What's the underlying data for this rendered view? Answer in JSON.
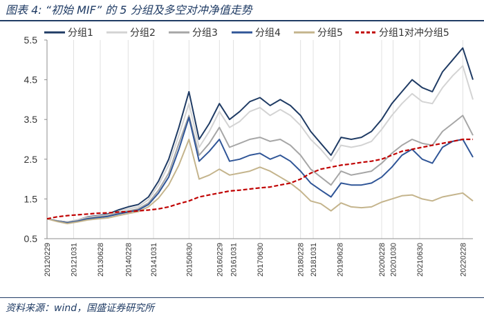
{
  "header": {
    "title": "图表 4:  “初始 MIF” 的 5 分组及多空对冲净值走势"
  },
  "footer": {
    "source": "资料来源：wind，国盛证券研究所"
  },
  "chart_data": {
    "type": "line",
    "title": "“初始 MIF” 的 5 分组及多空对冲净值走势",
    "xlabel": "",
    "ylabel": "",
    "ylim": [
      0.5,
      5.5
    ],
    "yticks": [
      "0.5",
      "1.5",
      "2.5",
      "3.5",
      "4.5",
      "5.5"
    ],
    "xticks": [
      "20120229",
      "20121031",
      "20130628",
      "20140228",
      "20141031",
      "20150630",
      "20160229",
      "20161031",
      "20170630",
      "20180228",
      "20181031",
      "20190628",
      "20200228",
      "20201030",
      "20210630",
      "20220228"
    ],
    "grid": "vertical",
    "legend_position": "top",
    "x": [
      "20120229",
      "20120531",
      "20120831",
      "20121130",
      "20130228",
      "20130531",
      "20130830",
      "20131129",
      "20140228",
      "20140530",
      "20140829",
      "20141128",
      "20150227",
      "20150529",
      "20150630",
      "20150831",
      "20151130",
      "20160229",
      "20160531",
      "20160831",
      "20161130",
      "20170228",
      "20170531",
      "20170831",
      "20171130",
      "20180228",
      "20180531",
      "20180831",
      "20181130",
      "20190228",
      "20190531",
      "20190830",
      "20191129",
      "20200228",
      "20200529",
      "20200831",
      "20201130",
      "20210226",
      "20210531",
      "20210831",
      "20211130",
      "20220228",
      "20220531"
    ],
    "series": [
      {
        "name": "分组1",
        "color": "#1f3b64",
        "dash": "solid",
        "values": [
          1.0,
          0.95,
          0.92,
          0.97,
          1.05,
          1.08,
          1.12,
          1.22,
          1.3,
          1.36,
          1.55,
          1.95,
          2.5,
          3.3,
          4.2,
          3.0,
          3.4,
          3.9,
          3.5,
          3.7,
          3.95,
          4.05,
          3.85,
          4.0,
          3.85,
          3.6,
          3.2,
          2.9,
          2.6,
          3.05,
          3.0,
          3.05,
          3.2,
          3.5,
          3.9,
          4.2,
          4.5,
          4.3,
          4.2,
          4.7,
          5.0,
          5.3,
          4.5
        ]
      },
      {
        "name": "分组2",
        "color": "#d3d3d3",
        "dash": "solid",
        "values": [
          1.0,
          0.95,
          0.92,
          0.97,
          1.04,
          1.07,
          1.1,
          1.18,
          1.25,
          1.3,
          1.48,
          1.85,
          2.35,
          3.1,
          3.9,
          2.8,
          3.2,
          3.7,
          3.3,
          3.45,
          3.7,
          3.8,
          3.6,
          3.75,
          3.6,
          3.35,
          3.0,
          2.75,
          2.45,
          2.85,
          2.8,
          2.85,
          2.95,
          3.25,
          3.6,
          3.9,
          4.15,
          3.95,
          3.9,
          4.3,
          4.6,
          4.85,
          4.0
        ]
      },
      {
        "name": "分组3",
        "color": "#a6a6a6",
        "dash": "solid",
        "values": [
          1.0,
          0.95,
          0.91,
          0.95,
          1.02,
          1.05,
          1.08,
          1.15,
          1.2,
          1.25,
          1.4,
          1.72,
          2.15,
          2.9,
          3.6,
          2.6,
          2.9,
          3.3,
          2.8,
          2.9,
          3.0,
          3.05,
          2.95,
          3.0,
          2.85,
          2.6,
          2.25,
          2.05,
          1.85,
          2.2,
          2.1,
          2.15,
          2.2,
          2.4,
          2.65,
          2.85,
          3.0,
          2.9,
          2.85,
          3.2,
          3.4,
          3.6,
          3.1
        ]
      },
      {
        "name": "分组4",
        "color": "#2f5597",
        "dash": "solid",
        "values": [
          1.0,
          0.94,
          0.9,
          0.94,
          1.0,
          1.03,
          1.06,
          1.12,
          1.17,
          1.22,
          1.36,
          1.65,
          2.05,
          2.75,
          3.55,
          2.45,
          2.7,
          3.0,
          2.45,
          2.5,
          2.6,
          2.65,
          2.5,
          2.6,
          2.45,
          2.2,
          1.9,
          1.72,
          1.55,
          1.9,
          1.85,
          1.85,
          1.9,
          2.05,
          2.3,
          2.6,
          2.75,
          2.5,
          2.4,
          2.8,
          2.95,
          3.0,
          2.55
        ]
      },
      {
        "name": "分组5",
        "color": "#c4b48c",
        "dash": "solid",
        "values": [
          1.0,
          0.93,
          0.88,
          0.92,
          0.97,
          1.0,
          1.02,
          1.08,
          1.13,
          1.18,
          1.3,
          1.52,
          1.85,
          2.35,
          3.0,
          2.0,
          2.1,
          2.25,
          2.1,
          2.15,
          2.2,
          2.3,
          2.2,
          2.05,
          1.9,
          1.7,
          1.45,
          1.38,
          1.2,
          1.4,
          1.3,
          1.28,
          1.3,
          1.42,
          1.5,
          1.58,
          1.6,
          1.5,
          1.45,
          1.55,
          1.6,
          1.65,
          1.45
        ]
      },
      {
        "name": "分组1对冲分组5",
        "color": "#c00000",
        "dash": "dashed",
        "values": [
          1.0,
          1.05,
          1.08,
          1.1,
          1.12,
          1.14,
          1.15,
          1.17,
          1.18,
          1.2,
          1.22,
          1.25,
          1.3,
          1.38,
          1.45,
          1.55,
          1.6,
          1.65,
          1.7,
          1.72,
          1.75,
          1.78,
          1.8,
          1.85,
          1.9,
          2.0,
          2.15,
          2.25,
          2.3,
          2.35,
          2.38,
          2.42,
          2.45,
          2.5,
          2.6,
          2.7,
          2.75,
          2.8,
          2.85,
          2.9,
          2.95,
          3.0,
          3.0
        ]
      }
    ]
  }
}
